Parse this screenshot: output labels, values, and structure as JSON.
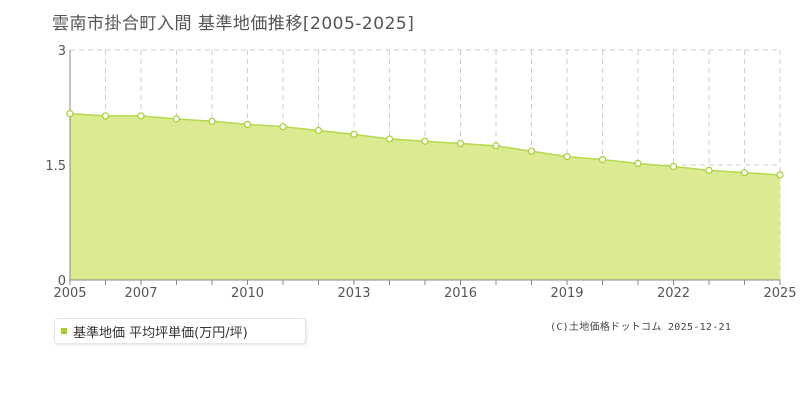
{
  "title": "雲南市掛合町入間 基準地価推移[2005-2025]",
  "legend": {
    "label": "基準地価 平均坪単価(万円/坪)"
  },
  "credit": "(C)土地価格ドットコム 2025-12-21",
  "colors": {
    "area_fill": "#dcea91",
    "line": "#b5d94a",
    "marker_stroke": "#a6cf2c",
    "marker_fill": "#ffffff",
    "legend_swatch": "#a6cf2c",
    "axis": "#888888",
    "grid": "#cccccc"
  },
  "chart_data": {
    "type": "area",
    "title": "雲南市掛合町入間 基準地価推移[2005-2025]",
    "xlabel": "",
    "ylabel": "",
    "xlim": [
      2005,
      2025
    ],
    "ylim": [
      0,
      3
    ],
    "x_tick_labels": [
      "2005",
      "2007",
      "2010",
      "2013",
      "2016",
      "2019",
      "2022",
      "2025"
    ],
    "x_ticks": [
      2005,
      2007,
      2010,
      2013,
      2016,
      2019,
      2022,
      2025
    ],
    "y_tick_labels": [
      "0",
      "1.5",
      "3"
    ],
    "y_ticks": [
      0,
      1.5,
      3
    ],
    "grid": true,
    "legend_position": "bottom-left",
    "series": [
      {
        "name": "基準地価 平均坪単価(万円/坪)",
        "x": [
          2005,
          2006,
          2007,
          2008,
          2009,
          2010,
          2011,
          2012,
          2013,
          2014,
          2015,
          2016,
          2017,
          2018,
          2019,
          2020,
          2021,
          2022,
          2023,
          2024,
          2025
        ],
        "values": [
          2.17,
          2.14,
          2.14,
          2.1,
          2.07,
          2.03,
          2.0,
          1.95,
          1.9,
          1.84,
          1.81,
          1.78,
          1.75,
          1.68,
          1.61,
          1.57,
          1.52,
          1.48,
          1.43,
          1.4,
          1.37
        ]
      }
    ]
  }
}
